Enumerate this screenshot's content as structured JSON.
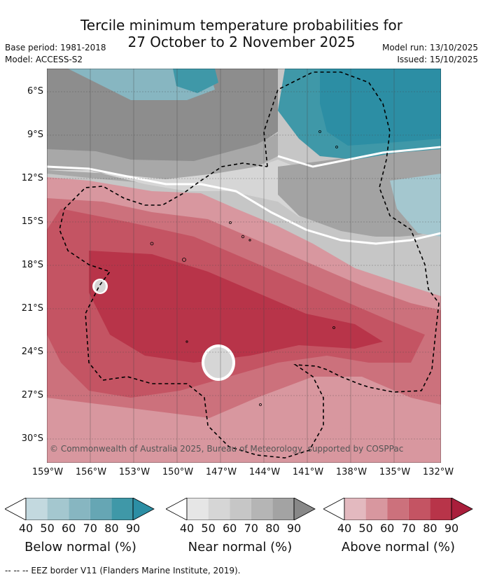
{
  "title": {
    "line1": "Tercile minimum temperature probabilities for",
    "line2": "27 October to 2 November 2025"
  },
  "meta": {
    "base_period": "Base period: 1981-2018",
    "model": "Model: ACCESS-S2",
    "model_run": "Model run: 13/10/2025",
    "issued": "Issued: 15/10/2025"
  },
  "map": {
    "lat_labels": [
      "6°S",
      "9°S",
      "12°S",
      "15°S",
      "18°S",
      "21°S",
      "24°S",
      "27°S",
      "30°S"
    ],
    "lon_labels": [
      "159°W",
      "156°W",
      "153°W",
      "150°W",
      "147°W",
      "144°W",
      "141°W",
      "138°W",
      "135°W",
      "132°W"
    ],
    "copyright": "© Commonwealth of Australia 2025, Bureau of Meteorology, supported by COSPPac"
  },
  "legend": {
    "ticks": [
      "40",
      "50",
      "60",
      "70",
      "80",
      "90"
    ],
    "below_label": "Below normal (%)",
    "near_label": "Near normal (%)",
    "above_label": "Above normal (%)",
    "below_colors": [
      "#c3d9df",
      "#a4c7cf",
      "#87b6c1",
      "#66a6b4",
      "#3f98a8",
      "#2c8ea4"
    ],
    "near_colors": [
      "#e6e6e6",
      "#d6d6d6",
      "#c6c6c6",
      "#b5b5b5",
      "#a3a3a3",
      "#888888"
    ],
    "above_colors": [
      "#e3b9bf",
      "#d8979f",
      "#cc717c",
      "#c45463",
      "#b83449",
      "#a91e3b"
    ]
  },
  "footnote": "--  --  -- EEZ border V11 (Flanders Marine Institute, 2019)."
}
